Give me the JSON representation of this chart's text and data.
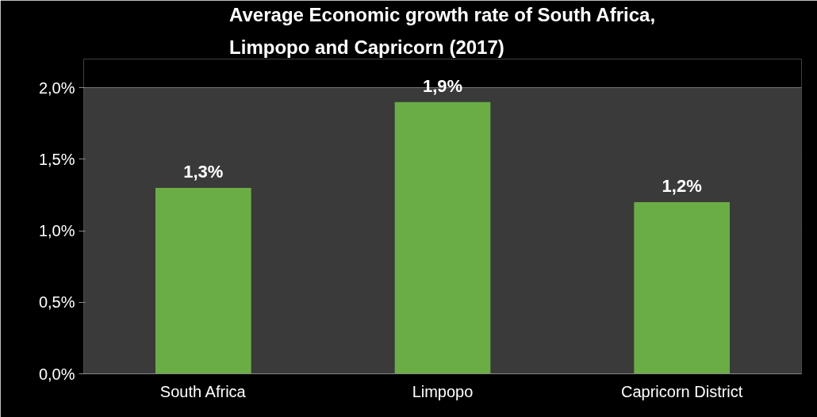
{
  "chart_data": {
    "type": "bar",
    "title": "Average Economic growth rate of South Africa,\nLimpopo and Capricorn (2017)",
    "categories": [
      "South Africa",
      "Limpopo",
      "Capricorn District"
    ],
    "values": [
      1.3,
      1.9,
      1.2
    ],
    "color": "#6aad45",
    "value_labels": [
      "1,3%",
      "1,9%",
      "1,2%"
    ],
    "ylim": [
      0,
      2
    ],
    "yticks": [
      {
        "value": 0,
        "label": "0,0%"
      },
      {
        "value": 0.5,
        "label": "0,5%"
      },
      {
        "value": 1,
        "label": "1,0%"
      },
      {
        "value": 1.5,
        "label": "1,5%"
      },
      {
        "value": 2,
        "label": "2,0%"
      }
    ],
    "grid": "y",
    "legend": false
  }
}
